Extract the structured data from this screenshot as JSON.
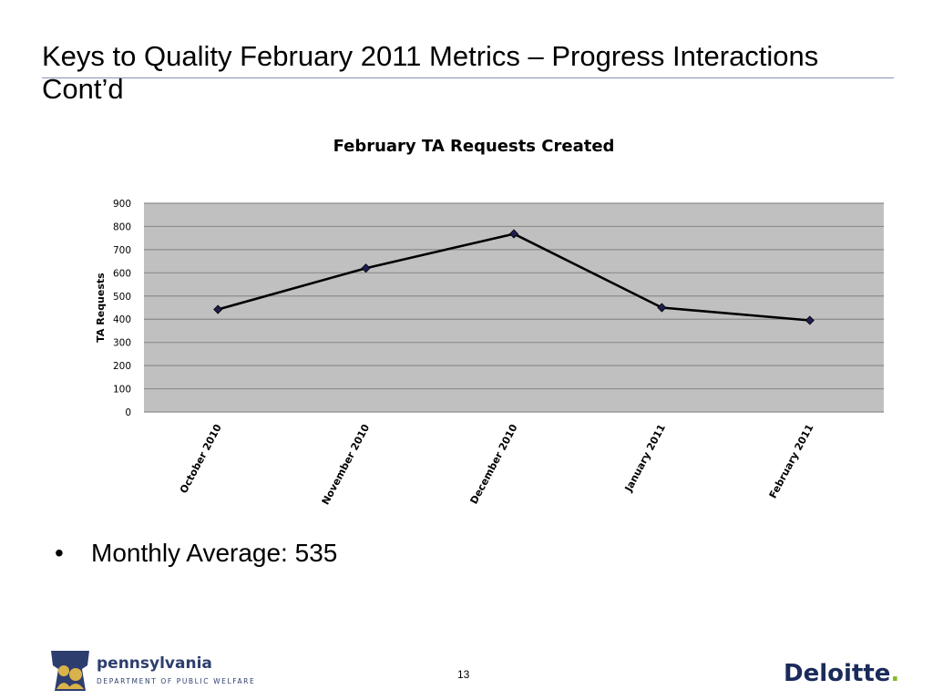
{
  "slide": {
    "title": "Keys to Quality February 2011 Metrics – Progress Interactions Cont’d",
    "bullets": [
      {
        "bullet": "•",
        "text": "Monthly Average: 535"
      }
    ],
    "page_number": "13"
  },
  "footer": {
    "pa_name": "pennsylvania",
    "pa_department": "DEPARTMENT OF PUBLIC WELFARE",
    "deloitte_name": "Deloitte",
    "deloitte_dot": "."
  },
  "chart_data": {
    "type": "line",
    "title": "February TA Requests Created",
    "xlabel": "",
    "ylabel": "TA Requests",
    "categories": [
      "October 2010",
      "November 2010",
      "December 2010",
      "January 2011",
      "February 2011"
    ],
    "series": [
      {
        "values": [
          442,
          620,
          768,
          450,
          395
        ]
      }
    ],
    "ylim": [
      0,
      900
    ],
    "yticks": [
      0,
      100,
      200,
      300,
      400,
      500,
      600,
      700,
      800,
      900
    ],
    "grid": true,
    "marker": "diamond",
    "colors": {
      "plot_area": "#c0c0c0",
      "line": "#000000",
      "marker": "#1f1f4f",
      "grid": "#8c8c8c"
    }
  }
}
